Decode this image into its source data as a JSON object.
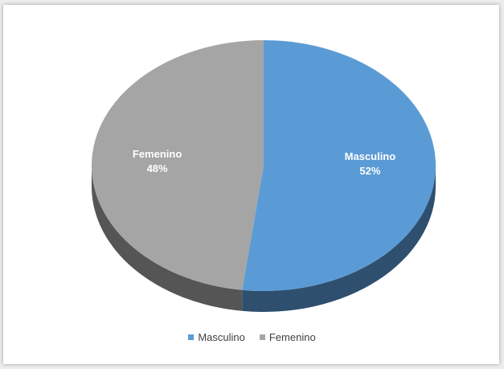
{
  "chart_data": {
    "type": "pie",
    "style": "3d",
    "title": "",
    "categories": [
      "Masculino",
      "Femenino"
    ],
    "values": [
      52,
      48
    ],
    "unit": "%",
    "data_labels": [
      {
        "name": "Masculino",
        "value": "52%"
      },
      {
        "name": "Femenino",
        "value": "48%"
      }
    ],
    "legend": {
      "position": "bottom",
      "entries": [
        "Masculino",
        "Femenino"
      ]
    },
    "colors": {
      "Masculino": "#5b9bd5",
      "Femenino": "#a5a5a5",
      "Masculino_side": "#2e4f6e",
      "Femenino_side": "#555555"
    }
  }
}
